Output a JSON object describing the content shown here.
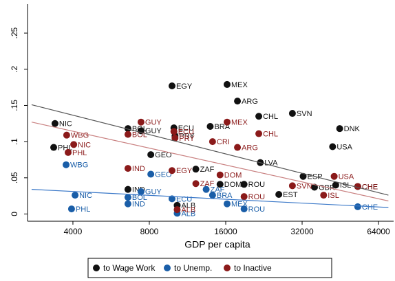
{
  "chart_data": {
    "type": "scatter",
    "x_label": "GDP per capita",
    "xscale": "log",
    "xlim": [
      2650,
      73400
    ],
    "xticks": [
      4000,
      8000,
      16000,
      32000,
      64000
    ],
    "ylim": [
      -0.01,
      0.29
    ],
    "yticks": [
      {
        "value": 0,
        "label": "0"
      },
      {
        "value": 0.05,
        "label": ".05"
      },
      {
        "value": 0.1,
        "label": ".1"
      },
      {
        "value": 0.15,
        "label": ".15"
      },
      {
        "value": 0.2,
        "label": ".2"
      },
      {
        "value": 0.25,
        "label": ".25"
      }
    ],
    "series": [
      {
        "name": "to Wage Work",
        "color": "#111111",
        "labels": [
          "NIC",
          "PHL",
          "BOL",
          "GUY",
          "GEO",
          "EGY",
          "ECU",
          "PRY",
          "MEX",
          "ARG",
          "BRA",
          "ZAF",
          "CHL",
          "SVN",
          "DNK",
          "USA",
          "LVA",
          "DOM",
          "ESP",
          "ISL",
          "GBR",
          "IND",
          "ALB",
          "ROU",
          "EST",
          "CHE"
        ],
        "x": [
          3400,
          3360,
          6590,
          7420,
          8110,
          9830,
          10000,
          10100,
          16200,
          17800,
          13900,
          12200,
          21600,
          29300,
          45000,
          42200,
          21900,
          15200,
          32300,
          43400,
          35800,
          6590,
          10300,
          18900,
          25900,
          53000
        ],
        "values": [
          0.125,
          0.092,
          0.118,
          0.115,
          0.082,
          0.177,
          0.119,
          0.108,
          0.179,
          0.156,
          0.121,
          0.062,
          0.135,
          0.139,
          0.118,
          0.093,
          0.071,
          0.041,
          0.052,
          0.04,
          0.037,
          0.034,
          0.012,
          0.041,
          0.027,
          0.038
        ]
      },
      {
        "name": "to Unemp.",
        "color": "#1a5ea8",
        "labels": [
          "WBG",
          "NIC",
          "PHL",
          "BOL",
          "IND",
          "GEO",
          "GUY",
          "ALB",
          "BRA",
          "ZAF",
          "MEX",
          "ROU",
          "CHE",
          "ECU"
        ],
        "x": [
          3760,
          4080,
          3950,
          6590,
          6590,
          8110,
          7420,
          10300,
          14200,
          13400,
          16200,
          18900,
          53000,
          9830
        ],
        "values": [
          0.068,
          0.026,
          0.007,
          0.023,
          0.014,
          0.055,
          0.031,
          0.001,
          0.026,
          0.034,
          0.014,
          0.007,
          0.01,
          0.021
        ]
      },
      {
        "name": "to Inactive",
        "color": "#8b1a1a",
        "labels": [
          "WBG",
          "NIC",
          "PHL",
          "GUY",
          "BOL",
          "IND",
          "EGY",
          "ECU",
          "PRY",
          "MEX",
          "CRI",
          "ARG",
          "CHL",
          "DOM",
          "ZAF",
          "USA",
          "SVN",
          "CHE",
          "ROU",
          "ALB",
          "ISL"
        ],
        "x": [
          3780,
          4030,
          3830,
          7420,
          6590,
          6590,
          9830,
          10000,
          10100,
          16200,
          14200,
          17800,
          21600,
          15200,
          12200,
          42800,
          29300,
          53000,
          18900,
          10300,
          38900
        ],
        "values": [
          0.109,
          0.096,
          0.085,
          0.127,
          0.11,
          0.063,
          0.06,
          0.114,
          0.105,
          0.127,
          0.1,
          0.092,
          0.111,
          0.054,
          0.042,
          0.052,
          0.039,
          0.038,
          0.024,
          0.006,
          0.026
        ]
      }
    ],
    "fits": [
      {
        "color": "#555555",
        "x": [
          2750,
          70000
        ],
        "values": [
          0.151,
          0.026
        ]
      },
      {
        "color": "#c98080",
        "x": [
          2750,
          70000
        ],
        "values": [
          0.127,
          0.018
        ]
      },
      {
        "color": "#3a78c8",
        "x": [
          2750,
          70000
        ],
        "values": [
          0.034,
          0.009
        ]
      }
    ]
  }
}
